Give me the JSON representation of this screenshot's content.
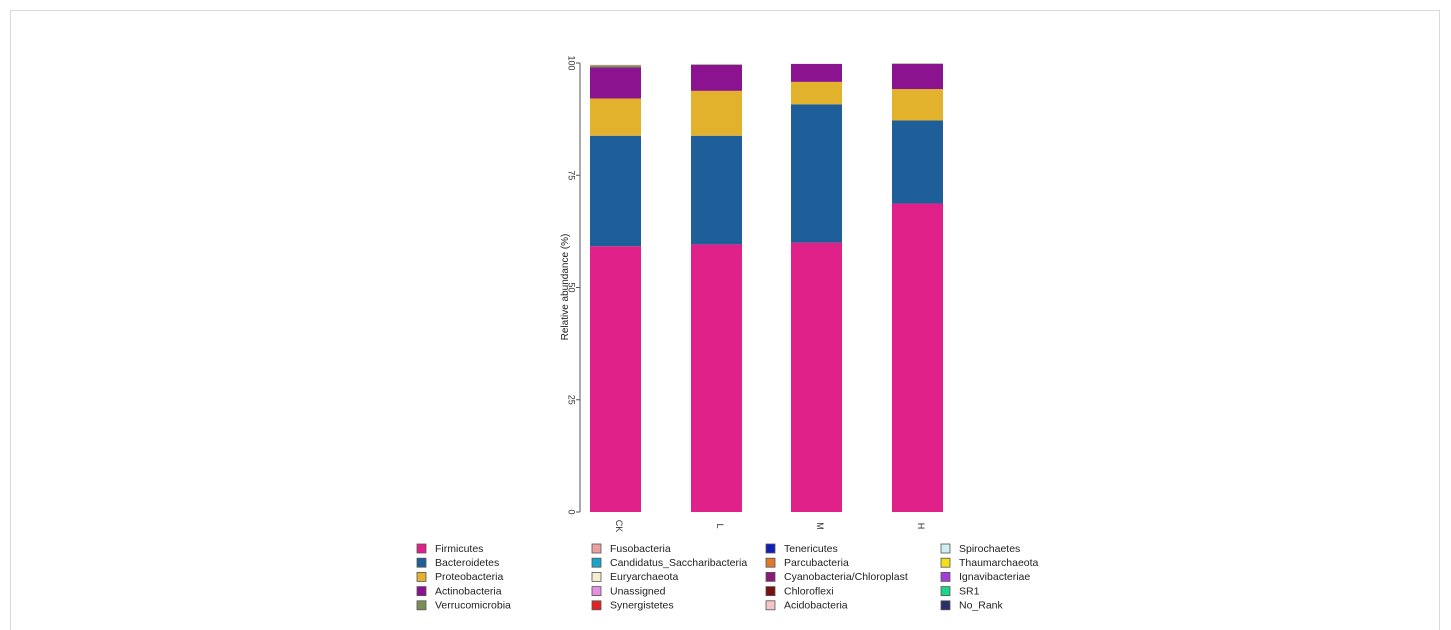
{
  "chart_data": {
    "type": "bar",
    "stacked": true,
    "categories": [
      "CK",
      "L",
      "M",
      "H"
    ],
    "ylabel": "Relative abundance (%)",
    "xlabel": "",
    "ylim": [
      0,
      100
    ],
    "yticks": [
      0,
      25,
      50,
      75,
      100
    ],
    "series": [
      {
        "name": "Firmicutes",
        "color": "#e0218a",
        "values": [
          59.2,
          59.6,
          60.0,
          68.7
        ]
      },
      {
        "name": "Bacteroidetes",
        "color": "#1f5f99",
        "values": [
          24.6,
          24.2,
          30.8,
          18.5
        ]
      },
      {
        "name": "Proteobacteria",
        "color": "#e2b22d",
        "values": [
          8.3,
          10.0,
          5.0,
          7.0
        ]
      },
      {
        "name": "Actinobacteria",
        "color": "#8b138f",
        "values": [
          6.9,
          5.8,
          4.0,
          5.6
        ]
      },
      {
        "name": "Verrucomicrobia",
        "color": "#7a8f56",
        "values": [
          0.5,
          0.1,
          0.0,
          0.1
        ]
      },
      {
        "name": "Fusobacteria",
        "color": "#e8a0a0",
        "values": [
          0.1,
          0.0,
          0.0,
          0.0
        ]
      },
      {
        "name": "Candidatus_Saccharibacteria",
        "color": "#1aa3c9",
        "values": [
          0.0,
          0.0,
          0.0,
          0.0
        ]
      },
      {
        "name": "Euryarchaeota",
        "color": "#f4edd2",
        "values": [
          0.0,
          0.0,
          0.0,
          0.0
        ]
      },
      {
        "name": "Unassigned",
        "color": "#e58fe3",
        "values": [
          0.0,
          0.0,
          0.0,
          0.0
        ]
      },
      {
        "name": "Synergistetes",
        "color": "#e02424",
        "values": [
          0.0,
          0.0,
          0.0,
          0.0
        ]
      },
      {
        "name": "Tenericutes",
        "color": "#0f1fb8",
        "values": [
          0.0,
          0.0,
          0.0,
          0.0
        ]
      },
      {
        "name": "Parcubacteria",
        "color": "#e07a2a",
        "values": [
          0.0,
          0.0,
          0.0,
          0.0
        ]
      },
      {
        "name": "Cyanobacteria/Chloroplast",
        "color": "#8a1a7a",
        "values": [
          0.0,
          0.0,
          0.0,
          0.0
        ]
      },
      {
        "name": "Chloroflexi",
        "color": "#7a0f0f",
        "values": [
          0.0,
          0.0,
          0.0,
          0.0
        ]
      },
      {
        "name": "Acidobacteria",
        "color": "#f2c6c6",
        "values": [
          0.0,
          0.0,
          0.0,
          0.0
        ]
      },
      {
        "name": "Spirochaetes",
        "color": "#cfeef0",
        "values": [
          0.0,
          0.0,
          0.0,
          0.0
        ]
      },
      {
        "name": "Thaumarchaeota",
        "color": "#f2e11a",
        "values": [
          0.0,
          0.0,
          0.0,
          0.0
        ]
      },
      {
        "name": "Ignavibacteriae",
        "color": "#a23fd6",
        "values": [
          0.0,
          0.0,
          0.0,
          0.0
        ]
      },
      {
        "name": "SR1",
        "color": "#1ad68a",
        "values": [
          0.0,
          0.0,
          0.0,
          0.0
        ]
      },
      {
        "name": "No_Rank",
        "color": "#2a2f6a",
        "values": [
          0.0,
          0.0,
          0.0,
          0.0
        ]
      }
    ],
    "legend": {
      "placement": "bottom",
      "columns": 4,
      "rows": 5
    }
  }
}
